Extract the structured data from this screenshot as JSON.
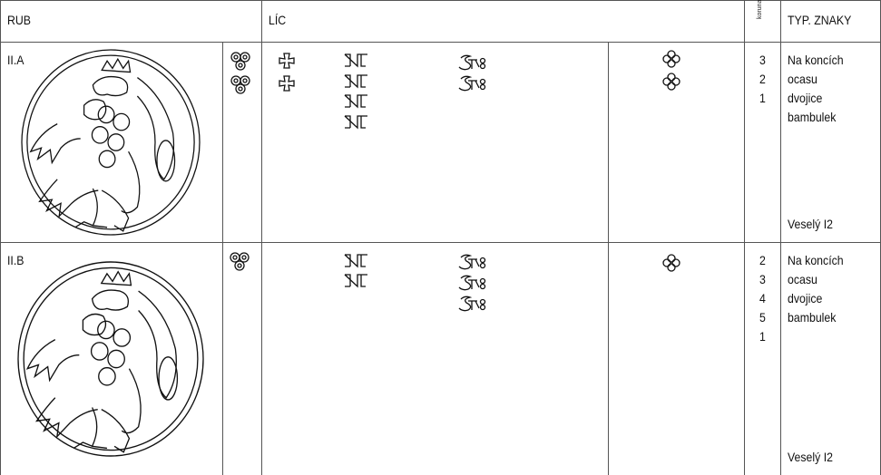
{
  "header": {
    "rub": "RUB",
    "lic": "LÍC",
    "koruna": "koruna",
    "typ": "TYP. ZNAKY"
  },
  "rows": [
    {
      "label": "II.A",
      "koruna": [
        3,
        2,
        1
      ],
      "description": [
        "Na koncích",
        "ocasu",
        "dvojice",
        "bambulek"
      ],
      "reference": "Veselý I2"
    },
    {
      "label": "II.B",
      "koruna": [
        2,
        3,
        4,
        5,
        1
      ],
      "description": [
        "Na koncích",
        "ocasu",
        "dvojice",
        "bambulek"
      ],
      "reference": "Veselý I2"
    }
  ]
}
